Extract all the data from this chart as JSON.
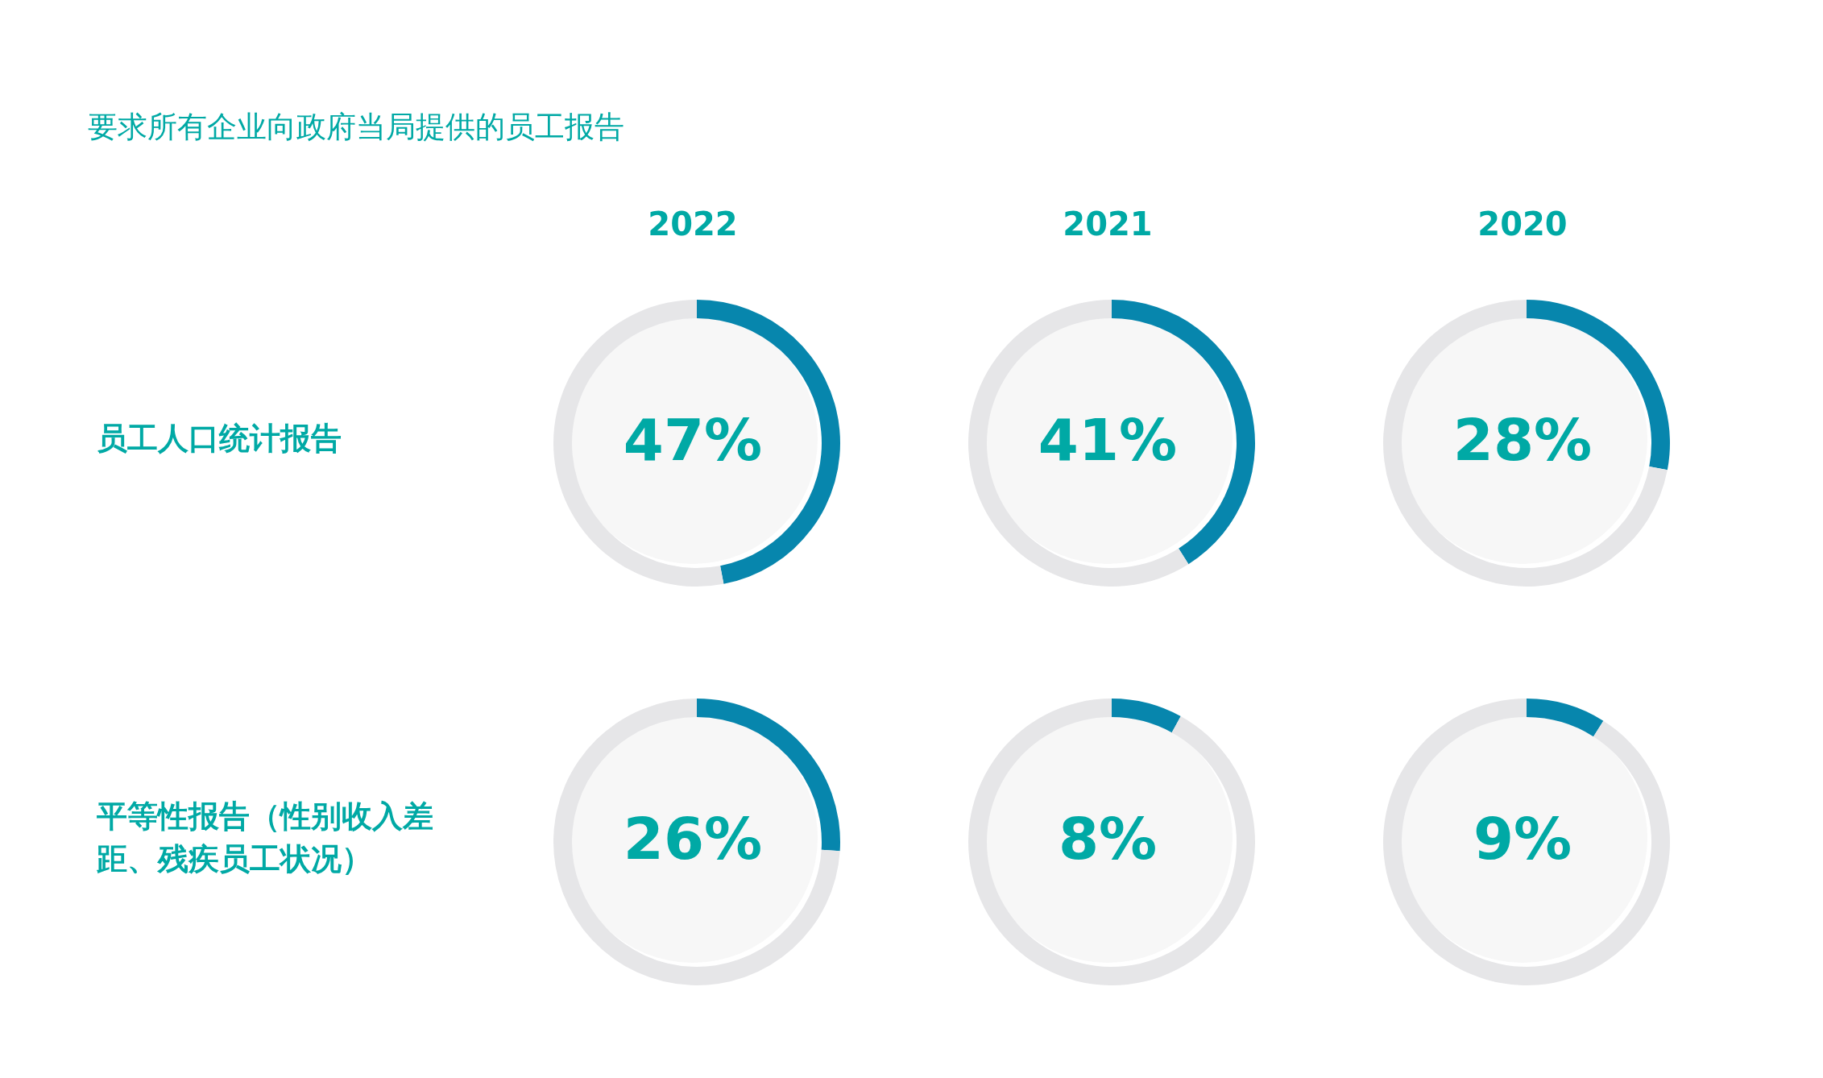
{
  "chart_data": [
    {
      "type": "donut",
      "title": "2022",
      "subtitle": "47%",
      "ylabel": "员工人口统计报告",
      "annotations": [
        "要求所有企业向政府当局提供的员工报告"
      ],
      "categories": [
        null,
        null
      ],
      "values": [
        47,
        53
      ],
      "colors": [
        "#0786ad",
        "#e6e6e8"
      ]
    },
    {
      "type": "donut",
      "title": "2021",
      "subtitle": "41%",
      "categories": [
        null,
        null
      ],
      "values": [
        41,
        59
      ],
      "colors": [
        "#0786ad",
        "#e6e6e8"
      ]
    },
    {
      "type": "donut",
      "title": "2020",
      "subtitle": "28%",
      "categories": [
        null,
        null
      ],
      "values": [
        28,
        72
      ],
      "colors": [
        "#0786ad",
        "#e6e6e8"
      ]
    },
    {
      "type": "donut",
      "subtitle": "26%",
      "ylabel": "平等性报告（性别收入差距、残疾员工状况）",
      "categories": [
        null,
        null
      ],
      "values": [
        26,
        74
      ],
      "colors": [
        "#0786ad",
        "#e6e6e8"
      ]
    },
    {
      "type": "donut",
      "subtitle": "8%",
      "categories": [
        null,
        null
      ],
      "values": [
        8,
        92
      ],
      "colors": [
        "#0786ad",
        "#e6e6e8"
      ]
    },
    {
      "type": "donut",
      "subtitle": "9%",
      "categories": [
        null,
        null
      ],
      "values": [
        9,
        91
      ],
      "colors": [
        "#0786ad",
        "#e6e6e8"
      ]
    }
  ]
}
